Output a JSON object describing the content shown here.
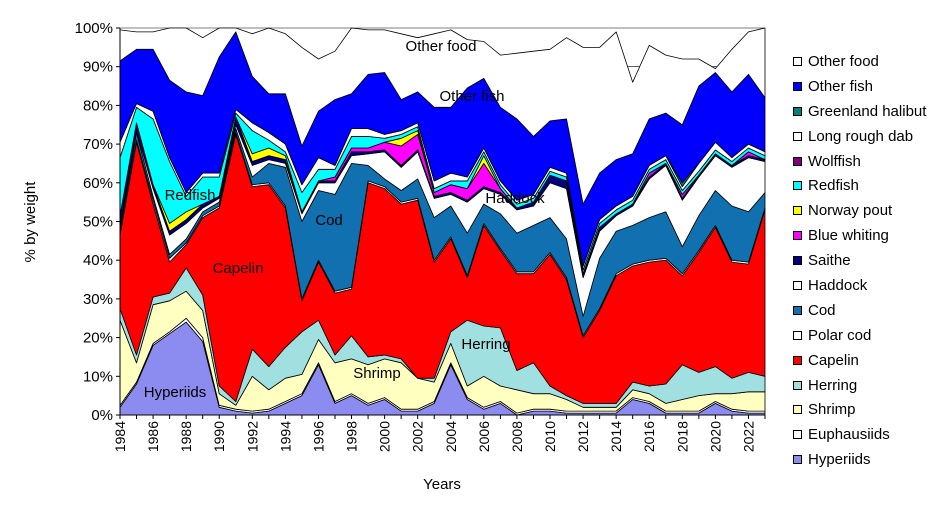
{
  "chart_data": {
    "type": "area",
    "stacked": true,
    "x": [
      1984,
      1985,
      1986,
      1987,
      1988,
      1989,
      1990,
      1991,
      1992,
      1993,
      1994,
      1995,
      1996,
      1997,
      1998,
      1999,
      2000,
      2001,
      2002,
      2003,
      2004,
      2005,
      2006,
      2007,
      2008,
      2009,
      2010,
      2011,
      2012,
      2013,
      2014,
      2015,
      2016,
      2017,
      2018,
      2019,
      2020,
      2021,
      2022,
      2023
    ],
    "xlabel": "Years",
    "ylabel": "% by weight",
    "ylim": [
      0,
      100
    ],
    "x_ticks": [
      "1984",
      "1986",
      "1988",
      "1990",
      "1992",
      "1994",
      "1996",
      "1998",
      "2000",
      "2002",
      "2004",
      "2006",
      "2008",
      "2010",
      "2012",
      "2014",
      "2016",
      "2018",
      "2020",
      "2022"
    ],
    "y_ticks": [
      "0%",
      "10%",
      "20%",
      "30%",
      "40%",
      "50%",
      "60%",
      "70%",
      "80%",
      "90%",
      "100%"
    ],
    "legend_position": "right",
    "series": [
      {
        "name": "Hyperiids",
        "color": "#8c8cf0",
        "values": [
          2,
          8,
          18,
          21,
          24,
          19,
          2,
          1,
          0.5,
          1,
          3,
          5,
          13,
          3,
          5,
          2.5,
          4,
          1,
          1,
          3,
          13,
          4,
          1.5,
          3,
          0,
          1,
          1,
          0.5,
          0.5,
          0.5,
          0.5,
          4,
          3,
          0.5,
          0.5,
          0.5,
          3,
          1,
          0.5,
          0.5
        ]
      },
      {
        "name": "Euphausiids",
        "color": "#ffffff",
        "values": [
          0.5,
          0.5,
          0.5,
          0.5,
          1,
          1,
          0.5,
          0.5,
          0.5,
          0.5,
          0.5,
          0.5,
          0.5,
          0.5,
          0.5,
          0.5,
          0.5,
          0.5,
          0.5,
          0.5,
          0.5,
          0.5,
          0.5,
          0.5,
          0.5,
          0.5,
          0.5,
          0.5,
          0.5,
          0.5,
          0.5,
          0.5,
          0.5,
          0.5,
          0.5,
          0.5,
          0.5,
          0.5,
          0.5,
          0.5
        ]
      },
      {
        "name": "Shrimp",
        "color": "#ffffc0",
        "values": [
          22,
          5,
          10,
          8,
          7,
          7,
          3,
          1,
          9,
          5,
          6,
          5,
          6,
          10,
          9,
          10,
          10,
          12,
          8,
          5,
          5,
          3,
          8,
          4,
          6,
          4,
          4,
          3,
          1,
          1,
          1,
          2,
          2,
          2,
          3,
          4,
          2,
          4,
          5,
          5
        ]
      },
      {
        "name": "Herring",
        "color": "#a0e0e0",
        "values": [
          3,
          2,
          2,
          2,
          6,
          4,
          2,
          1,
          7,
          6,
          8,
          11,
          5,
          2,
          6,
          2,
          1,
          1,
          0,
          1,
          3,
          17,
          13,
          15,
          5,
          8,
          2,
          1,
          1,
          1,
          1,
          2,
          2,
          5,
          9,
          6,
          7,
          4,
          5,
          4
        ]
      },
      {
        "name": "Capelin",
        "color": "#ff0000",
        "values": [
          19,
          55,
          24,
          8,
          6,
          20,
          46,
          69,
          42,
          47,
          36,
          8,
          15,
          16,
          12,
          45,
          43,
          40,
          46,
          30,
          24,
          11,
          26,
          20,
          25,
          23,
          34,
          30,
          17,
          24,
          33,
          30,
          32,
          32,
          23,
          31,
          36,
          30,
          28,
          43
        ]
      },
      {
        "name": "Polar cod",
        "color": "#ffffff",
        "values": [
          0.5,
          0.5,
          1,
          1,
          0.5,
          0.5,
          0.5,
          0.5,
          0.5,
          0.5,
          0.5,
          0.5,
          0.5,
          0.5,
          0.5,
          0.5,
          0.5,
          0.5,
          0.5,
          0.5,
          0.5,
          0.5,
          0.5,
          0.5,
          0.5,
          0.5,
          0.5,
          0.5,
          0.5,
          0.5,
          0.5,
          0.5,
          0.5,
          0.5,
          0.5,
          0.5,
          0.5,
          0.5,
          0.5,
          0.5
        ]
      },
      {
        "name": "Cod",
        "color": "#1070b0",
        "values": [
          1,
          2,
          1,
          1,
          1,
          1,
          1,
          1,
          2,
          5,
          10,
          20,
          18,
          25,
          32,
          4,
          2,
          3,
          5,
          11,
          8,
          11,
          5,
          9,
          10,
          12,
          9,
          10,
          5,
          13,
          11,
          10,
          11,
          12,
          7,
          9,
          9,
          14,
          13,
          4
        ]
      },
      {
        "name": "Haddock",
        "color": "#ffffff",
        "values": [
          0.5,
          0.5,
          2,
          5,
          4,
          1,
          1,
          1,
          3,
          1,
          1,
          2,
          2,
          3,
          2,
          3,
          7,
          6,
          7,
          5,
          3,
          8,
          4,
          5,
          6,
          5,
          9,
          13,
          10,
          7,
          4,
          5,
          10,
          12,
          12,
          10,
          9,
          10,
          14,
          8
        ]
      },
      {
        "name": "Saithe",
        "color": "#000080",
        "values": [
          3,
          2,
          1,
          1,
          1,
          1,
          0.5,
          2,
          1,
          1,
          1,
          0.5,
          0.5,
          0.5,
          1,
          0.5,
          0.5,
          0.5,
          0.5,
          0.5,
          0.5,
          0.5,
          0.5,
          0.5,
          0.5,
          1,
          2,
          2,
          1,
          1,
          0.5,
          0.5,
          0.5,
          0.5,
          0.5,
          0.5,
          0.5,
          0.5,
          0.5,
          0.5
        ]
      },
      {
        "name": "Blue whiting",
        "color": "#ff00ff",
        "values": [
          0,
          0,
          0,
          0,
          0,
          0,
          0,
          0,
          0,
          0,
          0,
          0,
          0,
          1,
          1,
          1,
          2,
          5,
          4,
          1,
          2,
          3,
          6,
          1,
          0,
          0,
          0,
          0,
          0,
          0,
          0,
          0,
          1,
          0,
          1,
          0,
          0,
          0,
          1,
          0
        ]
      },
      {
        "name": "Norway pout",
        "color": "#ffff00",
        "values": [
          0,
          0,
          0,
          2,
          2,
          0,
          0,
          0,
          2,
          2,
          1,
          0,
          0,
          0,
          0,
          0,
          0,
          2,
          1,
          0,
          0,
          0,
          2,
          0,
          0,
          0,
          0,
          0,
          0,
          0,
          0,
          0,
          0,
          0,
          0,
          0,
          0,
          0,
          0,
          0
        ]
      },
      {
        "name": "Redfish",
        "color": "#00ffff",
        "values": [
          15,
          4,
          17,
          16,
          4,
          7,
          5,
          1,
          6,
          2,
          1,
          5,
          3,
          2,
          3,
          3,
          1,
          1,
          1,
          1,
          1,
          2,
          1,
          1,
          1,
          1,
          1,
          1,
          1,
          1,
          1,
          1,
          1,
          1,
          1,
          1,
          1,
          1,
          1,
          1
        ]
      },
      {
        "name": "Wolffish",
        "color": "#800080",
        "values": [
          0,
          0,
          0,
          0,
          0,
          0,
          0,
          0,
          0,
          0,
          0,
          0,
          0,
          0,
          0,
          0,
          0,
          0,
          0,
          0,
          0,
          0,
          0,
          0,
          0,
          0,
          0,
          0,
          0,
          0,
          0,
          0,
          0,
          0,
          0,
          0,
          0,
          0,
          0,
          0
        ]
      },
      {
        "name": "Long rough dab",
        "color": "#ffffff",
        "values": [
          4,
          1,
          2,
          1,
          1,
          1,
          1,
          1,
          2,
          2,
          2,
          2,
          3,
          1,
          2,
          2,
          1,
          1,
          1,
          2,
          2,
          1,
          1,
          1,
          1,
          1,
          1,
          1,
          1,
          1,
          1,
          1,
          1,
          1,
          1,
          2,
          2,
          1,
          1,
          1
        ]
      },
      {
        "name": "Greenland halibut",
        "color": "#008080",
        "values": [
          0,
          0,
          0,
          0,
          0,
          0,
          0,
          0,
          0,
          0,
          0,
          0,
          0,
          0,
          0,
          0,
          0,
          0,
          0,
          0,
          0,
          0,
          0,
          0,
          0,
          0,
          0,
          0,
          0,
          0,
          0,
          0,
          0,
          0,
          1,
          0,
          0,
          0,
          0,
          0
        ]
      },
      {
        "name": "Other fish",
        "color": "#0000ff",
        "values": [
          21,
          14,
          16,
          20,
          26,
          20,
          30,
          20,
          12,
          10,
          13,
          10,
          12,
          17,
          9,
          14,
          16,
          8,
          8,
          19,
          17,
          23,
          18,
          19,
          21,
          15,
          12,
          14,
          16,
          12,
          12,
          11,
          12,
          11,
          15,
          20,
          18,
          17,
          18,
          14
        ]
      },
      {
        "name": "Other food",
        "color": "#ffffff",
        "values": [
          8,
          4.5,
          4.5,
          13.5,
          16.5,
          15,
          9,
          1.5,
          11,
          17,
          15.5,
          25.5,
          13.5,
          12.5,
          17,
          11.5,
          11,
          17,
          14,
          19,
          20,
          12.5,
          9.5,
          13.5,
          17,
          22,
          18.5,
          21,
          40.5,
          32.5,
          33,
          18.5,
          19,
          15,
          17,
          7,
          1,
          11,
          11,
          21
        ]
      }
    ],
    "annotations": [
      "Other food",
      "Other fish",
      "Redfish",
      "Haddock",
      "Cod",
      "Capelin",
      "Herring",
      "Shrimp",
      "Hyperiids"
    ]
  }
}
